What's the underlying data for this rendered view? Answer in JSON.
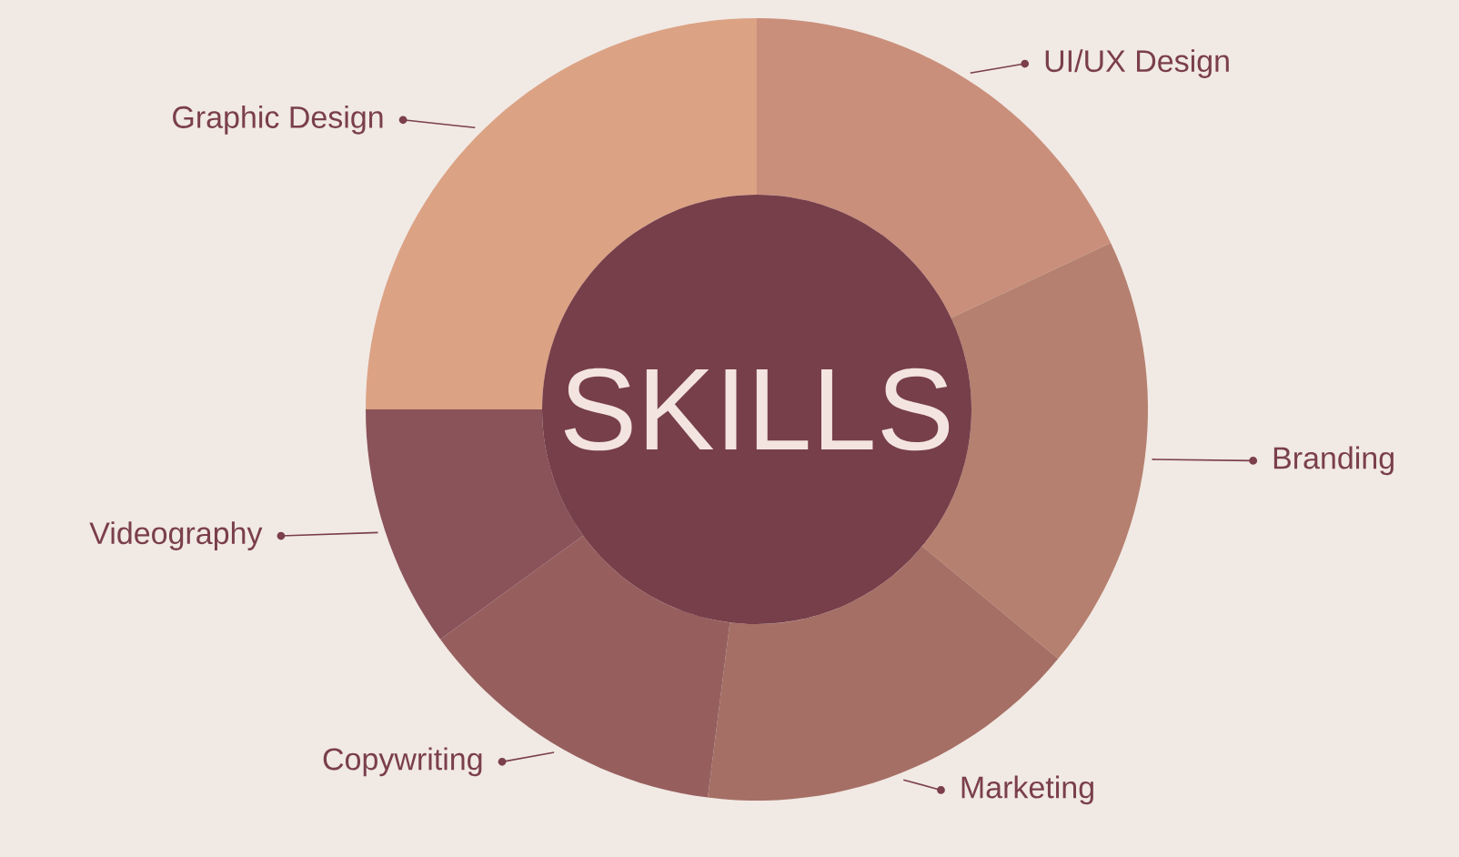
{
  "chart_data": {
    "type": "donut",
    "title": "SKILLS",
    "categories": [
      "UI/UX Design",
      "Branding",
      "Marketing",
      "Copywriting",
      "Videography",
      "Graphic Design"
    ],
    "values": [
      18,
      18,
      16,
      13,
      10,
      25
    ],
    "colors": [
      "#c98f7b",
      "#b5806f",
      "#a56f65",
      "#965f5e",
      "#8a535a",
      "#dba284"
    ]
  }
}
